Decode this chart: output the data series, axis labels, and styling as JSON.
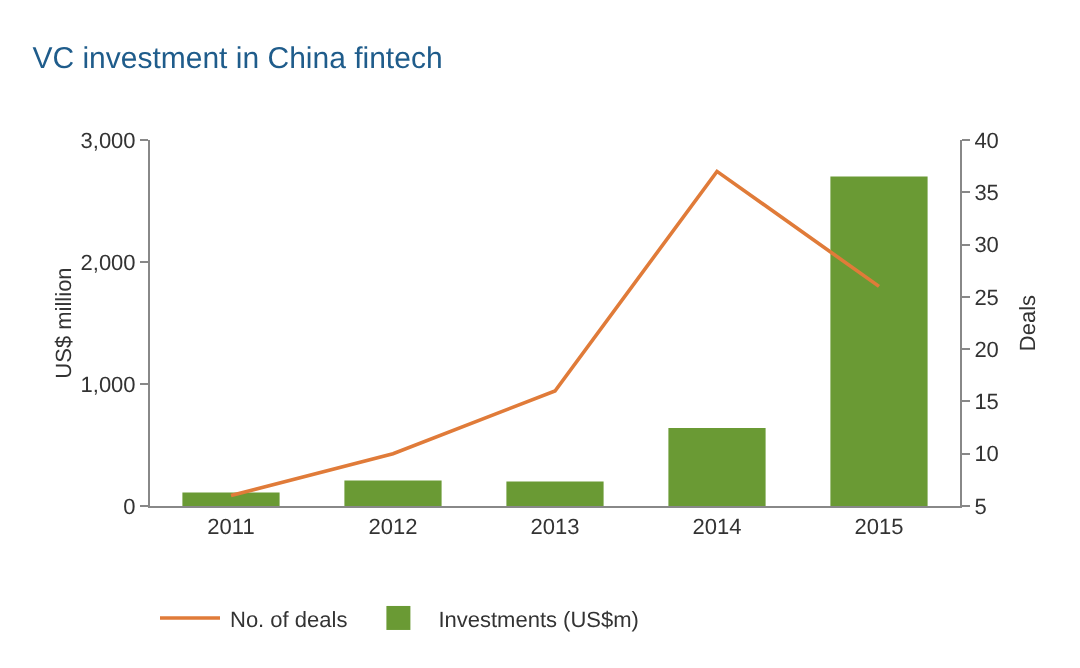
{
  "chart_data": {
    "type": "bar",
    "title": "VC investment in China fintech",
    "ylabel": "US$ million",
    "y2label": "Deals",
    "categories": [
      "2011",
      "2012",
      "2013",
      "2014",
      "2015"
    ],
    "series": [
      {
        "name": "No. of deals",
        "type": "line",
        "axis": "y2",
        "color": "#e07b39",
        "values": [
          6,
          10,
          16,
          37,
          26
        ]
      },
      {
        "name": "Investments (US$m)",
        "color": "#6a9a34",
        "values": [
          110,
          210,
          200,
          640,
          2700
        ]
      }
    ],
    "ylim": [
      0,
      3000
    ],
    "yticks": [
      0,
      {
        "value": 1000,
        "label": "1,000"
      },
      {
        "value": 2000,
        "label": "2,000"
      },
      {
        "value": 3000,
        "label": "3,000"
      }
    ],
    "y2lim": [
      5,
      40
    ],
    "y2ticks": [
      5,
      10,
      15,
      20,
      25,
      30,
      35,
      40
    ],
    "grid": false,
    "legend": "bottom",
    "marker": "none"
  }
}
